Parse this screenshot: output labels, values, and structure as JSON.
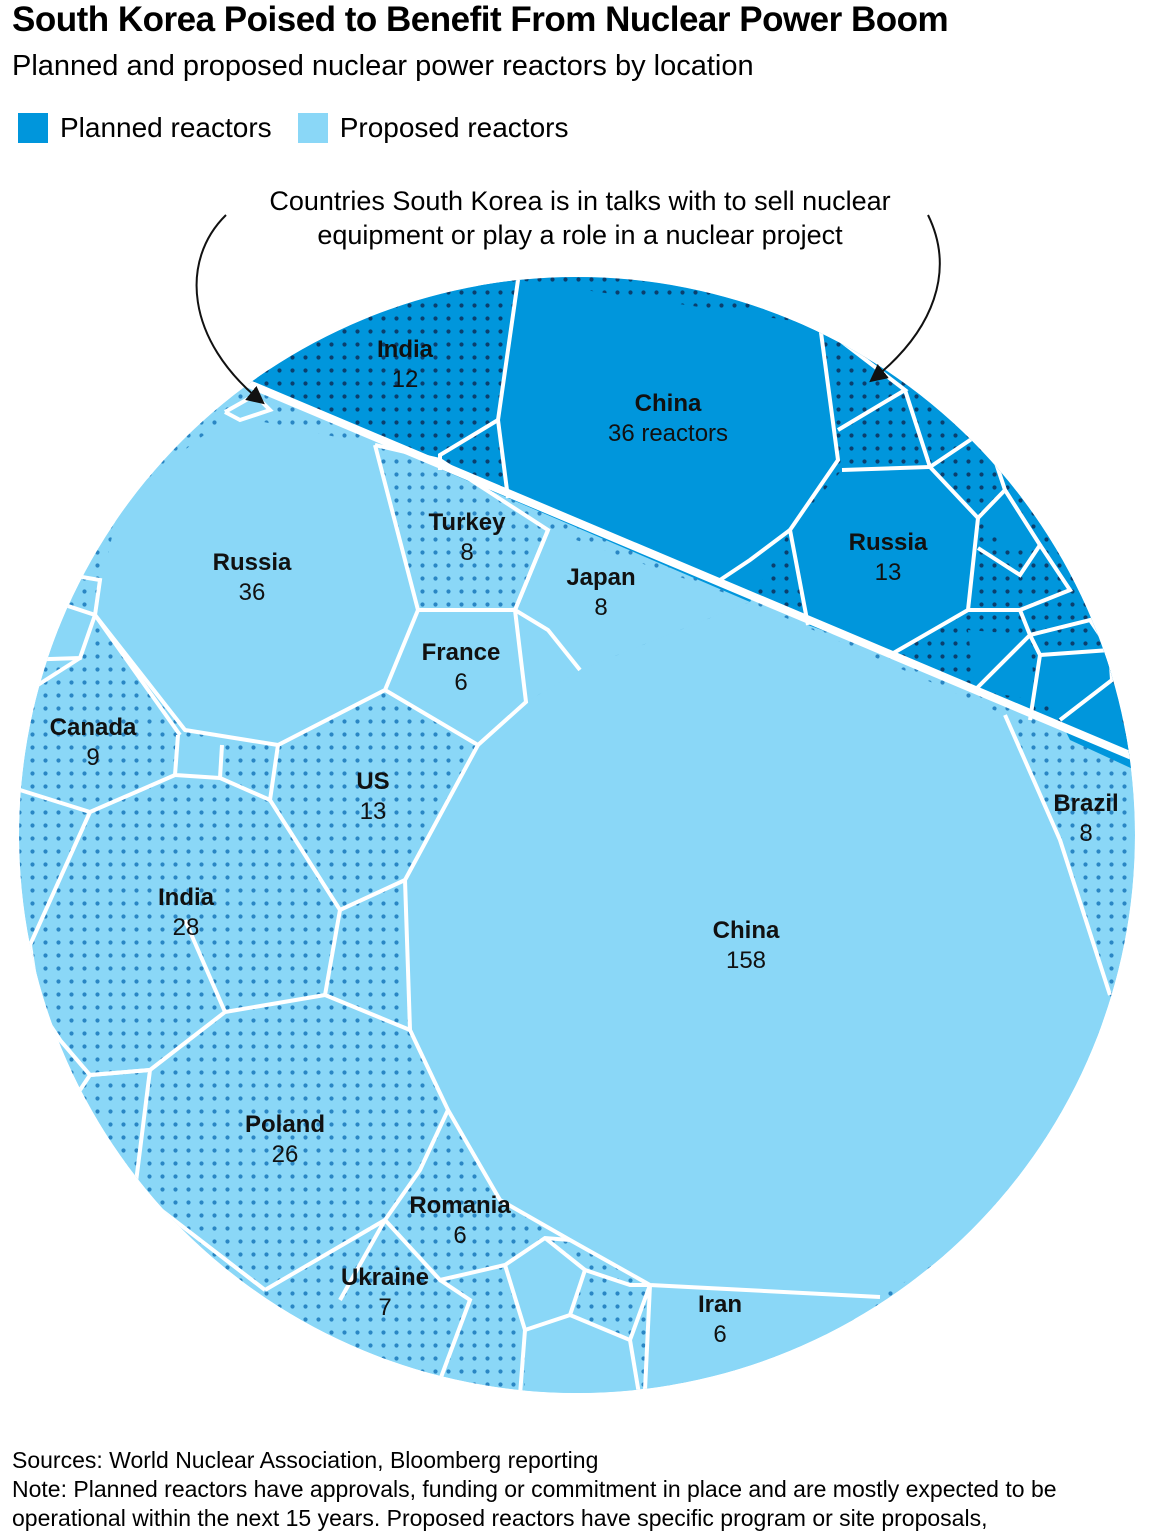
{
  "title": "South Korea Poised to Benefit From Nuclear Power Boom",
  "subtitle": "Planned and proposed nuclear power reactors by location",
  "legend": [
    {
      "label": "Planned reactors",
      "color": "#0096dc"
    },
    {
      "label": "Proposed reactors",
      "color": "#8ad7f7"
    }
  ],
  "annotation": {
    "line1": "Countries South Korea is in talks with to sell nuclear",
    "line2": "equipment or play a role in a nuclear project"
  },
  "pattern_meaning": "dotted",
  "chart_data": {
    "type": "voronoi-treemap",
    "groups": [
      {
        "name": "Planned reactors",
        "color": "#0096dc",
        "cells": [
          {
            "country": "China",
            "value": 36,
            "value_text": "36 reactors",
            "in_talks": false
          },
          {
            "country": "Russia",
            "value": 13,
            "value_text": "13",
            "in_talks": false
          },
          {
            "country": "India",
            "value": 12,
            "value_text": "12",
            "in_talks": true
          }
        ]
      },
      {
        "name": "Proposed reactors",
        "color": "#8ad7f7",
        "cells": [
          {
            "country": "China",
            "value": 158,
            "value_text": "158",
            "in_talks": false
          },
          {
            "country": "Russia",
            "value": 36,
            "value_text": "36",
            "in_talks": false
          },
          {
            "country": "India",
            "value": 28,
            "value_text": "28",
            "in_talks": true
          },
          {
            "country": "Poland",
            "value": 26,
            "value_text": "26",
            "in_talks": true
          },
          {
            "country": "US",
            "value": 13,
            "value_text": "13",
            "in_talks": true
          },
          {
            "country": "Canada",
            "value": 9,
            "value_text": "9",
            "in_talks": true
          },
          {
            "country": "Turkey",
            "value": 8,
            "value_text": "8",
            "in_talks": true
          },
          {
            "country": "Japan",
            "value": 8,
            "value_text": "8",
            "in_talks": false
          },
          {
            "country": "Brazil",
            "value": 8,
            "value_text": "8",
            "in_talks": true
          },
          {
            "country": "Ukraine",
            "value": 7,
            "value_text": "7",
            "in_talks": true
          },
          {
            "country": "France",
            "value": 6,
            "value_text": "6",
            "in_talks": false
          },
          {
            "country": "Romania",
            "value": 6,
            "value_text": "6",
            "in_talks": true
          },
          {
            "country": "Iran",
            "value": 6,
            "value_text": "6",
            "in_talks": false
          }
        ]
      }
    ]
  },
  "footer": {
    "sources": "Sources: World Nuclear Association, Bloomberg reporting",
    "note": "Note: Planned reactors have approvals, funding or commitment in place and are mostly expected to be operational within the next 15 years. Proposed reactors have specific program or site proposals,"
  }
}
